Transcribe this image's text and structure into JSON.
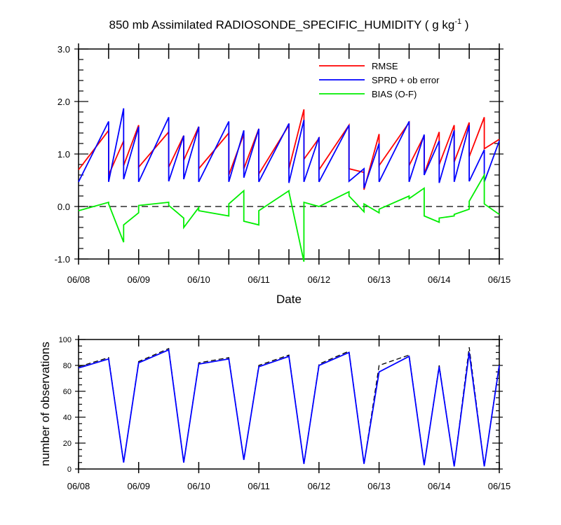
{
  "chart_data": [
    {
      "type": "line",
      "title_main": "850 mb Assimilated RADIOSONDE_SPECIFIC_HUMIDITY ( g kg",
      "title_sup": "-1",
      "title_end": " )",
      "xlabel": "Date",
      "ylabel": "",
      "xlim": [
        0,
        7
      ],
      "ylim": [
        -1.0,
        3.0
      ],
      "x_tick_labels": [
        "06/08",
        "06/09",
        "06/10",
        "06/11",
        "06/12",
        "06/13",
        "06/14",
        "06/15"
      ],
      "y_ticks": [
        -1.0,
        0.0,
        1.0,
        2.0,
        3.0
      ],
      "y_tick_labels": [
        "-1.0",
        "0.0",
        "1.0",
        "2.0",
        "3.0"
      ],
      "zero_line": true,
      "legend_position": "top-right",
      "series": [
        {
          "name": "RMSE",
          "color": "#ff0000",
          "x": [
            0.0,
            0.5,
            0.5,
            0.75,
            0.75,
            1.0,
            1.0,
            1.5,
            1.5,
            1.75,
            1.75,
            2.0,
            2.0,
            2.5,
            2.5,
            2.75,
            2.75,
            3.0,
            3.0,
            3.5,
            3.5,
            3.75,
            3.75,
            4.0,
            4.0,
            4.5,
            4.5,
            4.75,
            4.75,
            5.0,
            5.0,
            5.5,
            5.5,
            5.75,
            5.75,
            6.0,
            6.0,
            6.25,
            6.25,
            6.5,
            6.5,
            6.75,
            6.75,
            7.0
          ],
          "values": [
            0.7,
            1.45,
            0.6,
            1.25,
            0.78,
            1.55,
            0.75,
            1.42,
            0.75,
            1.35,
            0.88,
            1.52,
            0.72,
            1.4,
            0.6,
            1.38,
            0.72,
            1.48,
            0.62,
            1.55,
            0.72,
            1.85,
            0.9,
            1.3,
            0.7,
            1.55,
            0.72,
            0.65,
            0.32,
            1.38,
            0.78,
            1.6,
            0.78,
            1.35,
            0.62,
            1.42,
            0.8,
            1.55,
            0.85,
            1.6,
            0.95,
            1.7,
            1.1,
            1.28
          ]
        },
        {
          "name": "SPRD + ob error",
          "color": "#0000ff",
          "x": [
            0.0,
            0.5,
            0.5,
            0.75,
            0.75,
            1.0,
            1.0,
            1.5,
            1.5,
            1.75,
            1.75,
            2.0,
            2.0,
            2.5,
            2.5,
            2.75,
            2.75,
            3.0,
            3.0,
            3.5,
            3.5,
            3.75,
            3.75,
            4.0,
            4.0,
            4.5,
            4.5,
            4.75,
            4.75,
            5.0,
            5.0,
            5.5,
            5.5,
            5.75,
            5.75,
            6.0,
            6.0,
            6.25,
            6.25,
            6.5,
            6.5,
            6.75,
            6.75,
            7.0
          ],
          "values": [
            0.47,
            1.62,
            0.47,
            1.87,
            0.52,
            1.52,
            0.47,
            1.7,
            0.48,
            1.35,
            0.52,
            1.52,
            0.47,
            1.62,
            0.47,
            1.45,
            0.55,
            1.48,
            0.47,
            1.58,
            0.45,
            1.65,
            0.47,
            1.32,
            0.47,
            1.55,
            0.48,
            0.72,
            0.35,
            1.2,
            0.47,
            1.62,
            0.47,
            1.37,
            0.6,
            1.25,
            0.45,
            1.45,
            0.47,
            1.55,
            0.48,
            1.08,
            0.47,
            1.25
          ]
        },
        {
          "name": "BIAS (O-F)",
          "color": "#00ee00",
          "x": [
            0.0,
            0.5,
            0.5,
            0.75,
            0.75,
            1.0,
            1.0,
            1.5,
            1.5,
            1.75,
            1.75,
            2.0,
            2.0,
            2.5,
            2.5,
            2.75,
            2.75,
            3.0,
            3.0,
            3.5,
            3.5,
            3.75,
            3.75,
            4.0,
            4.0,
            4.5,
            4.5,
            4.75,
            4.75,
            5.0,
            5.0,
            5.5,
            5.5,
            5.75,
            5.75,
            6.0,
            6.0,
            6.25,
            6.25,
            6.5,
            6.5,
            6.75,
            6.75,
            7.0
          ],
          "values": [
            -0.08,
            0.08,
            0.05,
            -0.68,
            -0.35,
            -0.12,
            0.02,
            0.08,
            0.02,
            -0.22,
            -0.4,
            -0.02,
            -0.08,
            -0.18,
            0.05,
            0.3,
            -0.28,
            -0.35,
            -0.08,
            0.3,
            0.28,
            -1.05,
            0.08,
            0.0,
            0.0,
            0.28,
            0.2,
            -0.1,
            0.05,
            -0.12,
            -0.05,
            0.2,
            0.15,
            0.35,
            -0.18,
            -0.3,
            -0.22,
            -0.18,
            -0.15,
            -0.05,
            0.1,
            0.6,
            0.05,
            -0.15
          ]
        }
      ]
    },
    {
      "type": "line",
      "xlabel": "",
      "ylabel": "number of observations",
      "xlim": [
        0,
        7
      ],
      "ylim": [
        0,
        100
      ],
      "x_tick_labels": [
        "06/08",
        "06/09",
        "06/10",
        "06/11",
        "06/12",
        "06/13",
        "06/14",
        "06/15"
      ],
      "y_ticks": [
        0,
        20,
        40,
        60,
        80,
        100
      ],
      "y_tick_labels": [
        "0",
        "20",
        "40",
        "60",
        "80",
        "100"
      ],
      "series": [
        {
          "style": "dashed",
          "color": "#000000",
          "x": [
            0.0,
            0.5,
            0.75,
            1.0,
            1.5,
            1.75,
            2.0,
            2.5,
            2.75,
            3.0,
            3.5,
            3.75,
            4.0,
            4.5,
            4.75,
            5.0,
            5.5,
            5.75,
            6.0,
            6.25,
            6.5,
            6.75,
            7.0
          ],
          "values": [
            79,
            86,
            5,
            83,
            93,
            5,
            82,
            86,
            7,
            80,
            88,
            4,
            81,
            91,
            4,
            80,
            88,
            3,
            80,
            2,
            94,
            2,
            81
          ]
        },
        {
          "style": "solid",
          "color": "#0000ff",
          "x": [
            0.0,
            0.5,
            0.75,
            1.0,
            1.5,
            1.75,
            2.0,
            2.5,
            2.75,
            3.0,
            3.5,
            3.75,
            4.0,
            4.5,
            4.75,
            5.0,
            5.5,
            5.75,
            6.0,
            6.25,
            6.5,
            6.75,
            7.0
          ],
          "values": [
            78,
            85,
            5,
            82,
            92,
            5,
            81,
            85,
            7,
            79,
            87,
            4,
            80,
            90,
            4,
            75,
            87,
            3,
            79,
            2,
            90,
            2,
            80
          ]
        }
      ]
    }
  ]
}
